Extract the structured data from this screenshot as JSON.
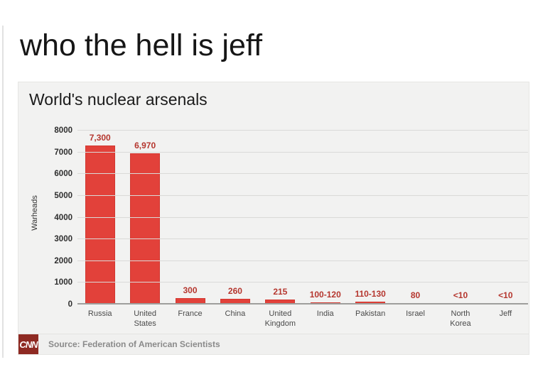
{
  "meme": {
    "caption": "who the hell is jeff"
  },
  "chart": {
    "title": "World's nuclear arsenals",
    "ylabel": "Warheads",
    "logo": "CNN",
    "source": "Source: Federation of American Scientists"
  },
  "chart_data": {
    "type": "bar",
    "title": "World's nuclear arsenals",
    "xlabel": "",
    "ylabel": "Warheads",
    "ylim": [
      0,
      8000
    ],
    "yticks": [
      0,
      1000,
      2000,
      3000,
      4000,
      5000,
      6000,
      7000,
      8000
    ],
    "grid": true,
    "legend": false,
    "bar_color": "#e2413a",
    "value_label_color": "#b5362e",
    "categories": [
      "Russia",
      "United States",
      "France",
      "China",
      "United Kingdom",
      "India",
      "Pakistan",
      "Israel",
      "North Korea",
      "Jeff"
    ],
    "values": [
      7300,
      6970,
      300,
      260,
      215,
      110,
      120,
      80,
      8,
      8
    ],
    "value_labels": [
      "7,300",
      "6,970",
      "300",
      "260",
      "215",
      "100-120",
      "110-130",
      "80",
      "<10",
      "<10"
    ]
  }
}
